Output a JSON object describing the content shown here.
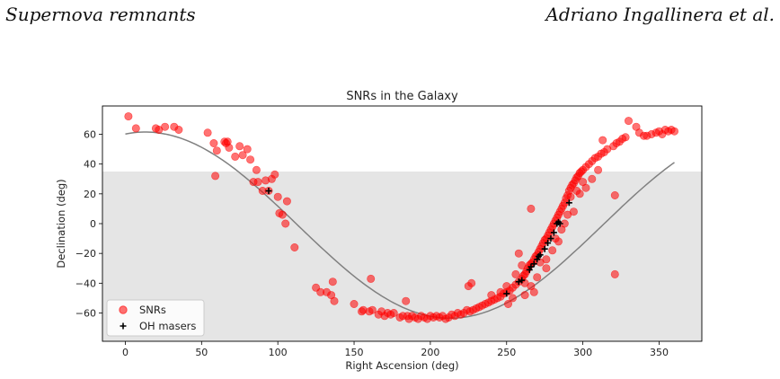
{
  "header": {
    "left": "Supernova remnants",
    "right": "Adriano Ingallinera et al."
  },
  "colors": {
    "snr": "#ff0000",
    "maser": "#000000",
    "shade": "#e5e5e5",
    "curve": "#808080"
  },
  "chart_data": {
    "type": "scatter",
    "title": "SNRs in the Galaxy",
    "xlabel": "Right Ascension (deg)",
    "ylabel": "Declination (deg)",
    "xlim": [
      -15,
      378
    ],
    "ylim": [
      -79,
      79
    ],
    "xticks": [
      0,
      50,
      100,
      150,
      200,
      250,
      300,
      350
    ],
    "yticks": [
      -60,
      -40,
      -20,
      0,
      20,
      40,
      60
    ],
    "shaded_region": {
      "dec_max": 35
    },
    "legend": {
      "placement": "lower-left",
      "entries": [
        "SNRs",
        "OH masers"
      ]
    },
    "series": [
      {
        "name": "SNRs",
        "marker": "circle",
        "points": [
          [
            2,
            72
          ],
          [
            7,
            64
          ],
          [
            20,
            64
          ],
          [
            22,
            63
          ],
          [
            26,
            65
          ],
          [
            32,
            65
          ],
          [
            35,
            63
          ],
          [
            54,
            61
          ],
          [
            58,
            54
          ],
          [
            60,
            49
          ],
          [
            59,
            32
          ],
          [
            65,
            55
          ],
          [
            66,
            54
          ],
          [
            67,
            55
          ],
          [
            68,
            51
          ],
          [
            72,
            45
          ],
          [
            75,
            52
          ],
          [
            77,
            46
          ],
          [
            80,
            50
          ],
          [
            82,
            43
          ],
          [
            84,
            28
          ],
          [
            86,
            36
          ],
          [
            87,
            28
          ],
          [
            90,
            22
          ],
          [
            92,
            29
          ],
          [
            94,
            22
          ],
          [
            96,
            30
          ],
          [
            98,
            33
          ],
          [
            100,
            18
          ],
          [
            101,
            7
          ],
          [
            103,
            6
          ],
          [
            105,
            0
          ],
          [
            106,
            15
          ],
          [
            111,
            -16
          ],
          [
            125,
            -43
          ],
          [
            128,
            -46
          ],
          [
            132,
            -46
          ],
          [
            135,
            -48
          ],
          [
            136,
            -39
          ],
          [
            137,
            -52
          ],
          [
            150,
            -54
          ],
          [
            155,
            -59
          ],
          [
            156,
            -58
          ],
          [
            160,
            -59
          ],
          [
            161,
            -37
          ],
          [
            162,
            -58
          ],
          [
            166,
            -61
          ],
          [
            168,
            -59
          ],
          [
            170,
            -62
          ],
          [
            172,
            -60
          ],
          [
            174,
            -61
          ],
          [
            176,
            -60
          ],
          [
            180,
            -63
          ],
          [
            182,
            -62
          ],
          [
            184,
            -52
          ],
          [
            185,
            -62
          ],
          [
            186,
            -64
          ],
          [
            188,
            -62
          ],
          [
            190,
            -63
          ],
          [
            192,
            -64
          ],
          [
            194,
            -62
          ],
          [
            196,
            -63
          ],
          [
            198,
            -64
          ],
          [
            200,
            -62
          ],
          [
            202,
            -63
          ],
          [
            204,
            -62
          ],
          [
            206,
            -63
          ],
          [
            208,
            -62
          ],
          [
            210,
            -64
          ],
          [
            212,
            -63
          ],
          [
            214,
            -61
          ],
          [
            216,
            -62
          ],
          [
            218,
            -60
          ],
          [
            220,
            -61
          ],
          [
            222,
            -60
          ],
          [
            224,
            -58
          ],
          [
            225,
            -42
          ],
          [
            226,
            -59
          ],
          [
            227,
            -40
          ],
          [
            228,
            -58
          ],
          [
            230,
            -57
          ],
          [
            232,
            -56
          ],
          [
            234,
            -55
          ],
          [
            236,
            -54
          ],
          [
            238,
            -53
          ],
          [
            240,
            -52
          ],
          [
            242,
            -51
          ],
          [
            244,
            -50
          ],
          [
            246,
            -49
          ],
          [
            248,
            -47
          ],
          [
            250,
            -46
          ],
          [
            251,
            -54
          ],
          [
            252,
            -45
          ],
          [
            254,
            -43
          ],
          [
            256,
            -41
          ],
          [
            258,
            -39
          ],
          [
            260,
            -37
          ],
          [
            261,
            -35
          ],
          [
            262,
            -34
          ],
          [
            263,
            -32
          ],
          [
            264,
            -30
          ],
          [
            265,
            -28
          ],
          [
            266,
            -27
          ],
          [
            266,
            10
          ],
          [
            267,
            -26
          ],
          [
            268,
            -24
          ],
          [
            269,
            -22
          ],
          [
            270,
            -21
          ],
          [
            271,
            -19
          ],
          [
            272,
            -17
          ],
          [
            273,
            -15
          ],
          [
            274,
            -13
          ],
          [
            275,
            -11
          ],
          [
            276,
            -10
          ],
          [
            277,
            -8
          ],
          [
            278,
            -6
          ],
          [
            279,
            -4
          ],
          [
            280,
            -2
          ],
          [
            281,
            0
          ],
          [
            282,
            2
          ],
          [
            283,
            4
          ],
          [
            284,
            6
          ],
          [
            285,
            8
          ],
          [
            286,
            10
          ],
          [
            287,
            12
          ],
          [
            288,
            14
          ],
          [
            289,
            17
          ],
          [
            290,
            19
          ],
          [
            291,
            22
          ],
          [
            292,
            24
          ],
          [
            293,
            26
          ],
          [
            294,
            27
          ],
          [
            295,
            29
          ],
          [
            296,
            31
          ],
          [
            297,
            32
          ],
          [
            298,
            34
          ],
          [
            299,
            35
          ],
          [
            300,
            36
          ],
          [
            302,
            38
          ],
          [
            304,
            40
          ],
          [
            306,
            42
          ],
          [
            308,
            44
          ],
          [
            310,
            45
          ],
          [
            312,
            47
          ],
          [
            313,
            56
          ],
          [
            314,
            48
          ],
          [
            316,
            50
          ],
          [
            320,
            52
          ],
          [
            321,
            19
          ],
          [
            321,
            -34
          ],
          [
            322,
            54
          ],
          [
            324,
            55
          ],
          [
            326,
            57
          ],
          [
            328,
            58
          ],
          [
            330,
            69
          ],
          [
            335,
            65
          ],
          [
            337,
            61
          ],
          [
            340,
            59
          ],
          [
            342,
            59
          ],
          [
            345,
            60
          ],
          [
            348,
            61
          ],
          [
            350,
            62
          ],
          [
            352,
            60
          ],
          [
            354,
            63
          ],
          [
            356,
            62
          ],
          [
            358,
            63
          ],
          [
            360,
            62
          ],
          [
            258,
            -20
          ],
          [
            262,
            -40
          ],
          [
            268,
            -46
          ],
          [
            254,
            -50
          ],
          [
            272,
            -26
          ],
          [
            276,
            -30
          ],
          [
            284,
            -12
          ],
          [
            288,
            0
          ],
          [
            292,
            18
          ],
          [
            296,
            22
          ],
          [
            300,
            28
          ],
          [
            294,
            8
          ],
          [
            280,
            -18
          ],
          [
            270,
            -36
          ],
          [
            266,
            -42
          ],
          [
            262,
            -48
          ],
          [
            276,
            -24
          ],
          [
            282,
            -10
          ],
          [
            286,
            -4
          ],
          [
            290,
            6
          ],
          [
            298,
            20
          ],
          [
            302,
            24
          ],
          [
            306,
            30
          ],
          [
            310,
            36
          ],
          [
            260,
            -28
          ],
          [
            256,
            -34
          ],
          [
            250,
            -42
          ],
          [
            246,
            -46
          ],
          [
            240,
            -48
          ]
        ]
      },
      {
        "name": "OH masers",
        "marker": "plus",
        "points": [
          [
            94,
            22
          ],
          [
            250,
            -47
          ],
          [
            258,
            -39
          ],
          [
            260,
            -38
          ],
          [
            265,
            -31
          ],
          [
            266,
            -29
          ],
          [
            268,
            -27
          ],
          [
            270,
            -24
          ],
          [
            271,
            -22
          ],
          [
            272,
            -21
          ],
          [
            275,
            -17
          ],
          [
            277,
            -13
          ],
          [
            279,
            -10
          ],
          [
            281,
            -6
          ],
          [
            283,
            0
          ],
          [
            284,
            1
          ],
          [
            285,
            0
          ],
          [
            291,
            14
          ]
        ]
      }
    ],
    "curve": {
      "description": "Galactic plane",
      "color": "#808080"
    }
  }
}
